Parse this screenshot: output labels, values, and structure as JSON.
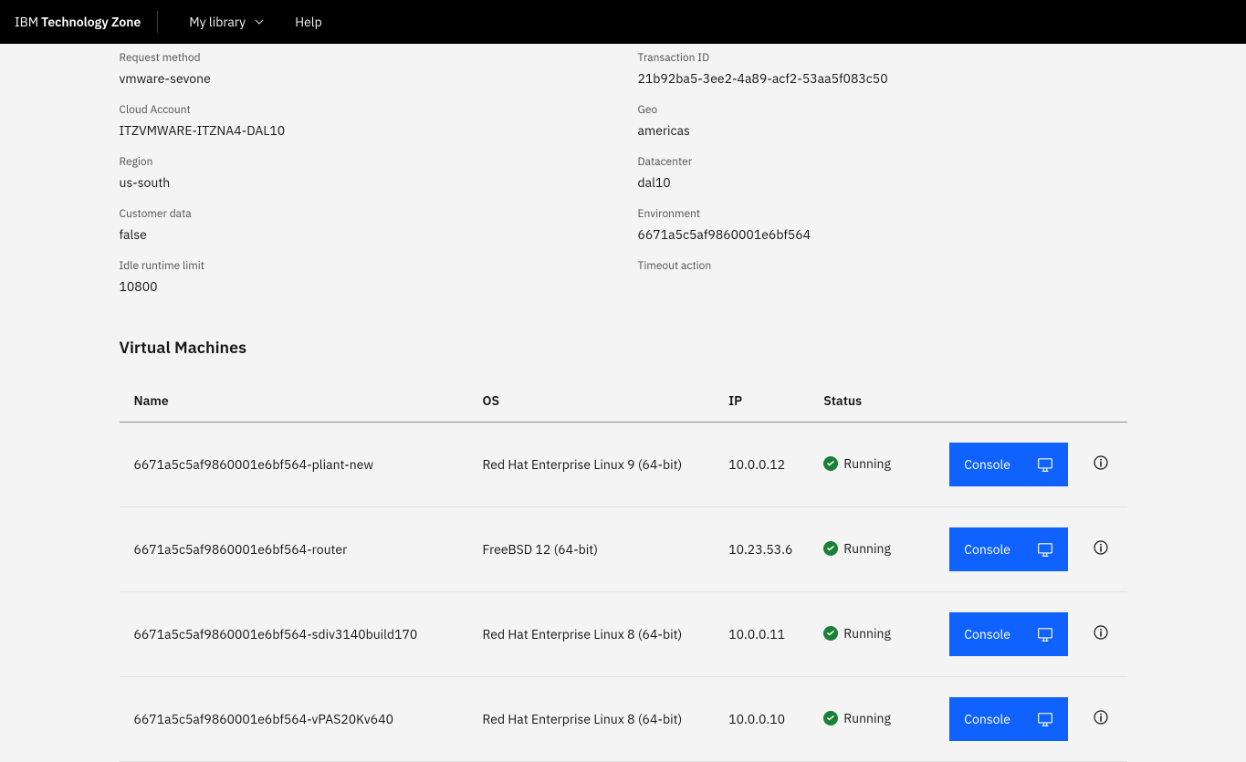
{
  "header": {
    "brand_prefix": "IBM",
    "brand_name": "Technology Zone",
    "nav": {
      "my_library": "My library",
      "help": "Help"
    }
  },
  "details": {
    "left": [
      {
        "label": "Request method",
        "value": "vmware-sevone"
      },
      {
        "label": "Cloud Account",
        "value": "ITZVMWARE-ITZNA4-DAL10"
      },
      {
        "label": "Region",
        "value": "us-south"
      },
      {
        "label": "Customer data",
        "value": "false"
      },
      {
        "label": "Idle runtime limit",
        "value": "10800"
      }
    ],
    "right": [
      {
        "label": "Transaction ID",
        "value": "21b92ba5-3ee2-4a89-acf2-53aa5f083c50"
      },
      {
        "label": "Geo",
        "value": "americas"
      },
      {
        "label": "Datacenter",
        "value": "dal10"
      },
      {
        "label": "Environment",
        "value": "6671a5c5af9860001e6bf564"
      },
      {
        "label": "Timeout action",
        "value": ""
      }
    ]
  },
  "vm_section": {
    "title": "Virtual Machines",
    "columns": {
      "name": "Name",
      "os": "OS",
      "ip": "IP",
      "status": "Status"
    },
    "console_label": "Console",
    "status_color": "#198038",
    "rows": [
      {
        "name": "6671a5c5af9860001e6bf564-pliant-new",
        "os": "Red Hat Enterprise Linux 9 (64-bit)",
        "ip": "10.0.0.12",
        "status": "Running"
      },
      {
        "name": "6671a5c5af9860001e6bf564-router",
        "os": "FreeBSD 12 (64-bit)",
        "ip": "10.23.53.6",
        "status": "Running"
      },
      {
        "name": "6671a5c5af9860001e6bf564-sdiv3140build170",
        "os": "Red Hat Enterprise Linux 8 (64-bit)",
        "ip": "10.0.0.11",
        "status": "Running"
      },
      {
        "name": "6671a5c5af9860001e6bf564-vPAS20Kv640",
        "os": "Red Hat Enterprise Linux 8 (64-bit)",
        "ip": "10.0.0.10",
        "status": "Running"
      }
    ]
  }
}
